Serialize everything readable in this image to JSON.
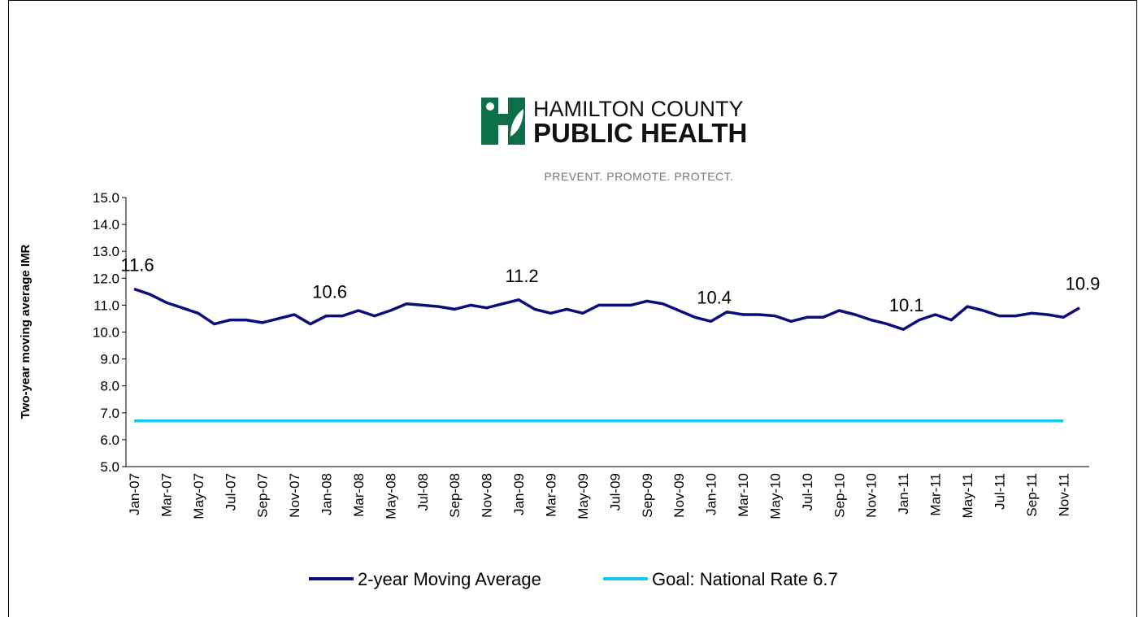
{
  "chart_data": {
    "type": "line",
    "annotations": [
      "HAMILTON COUNTY",
      "PUBLIC HEALTH",
      "PREVENT. PROMOTE. PROTECT."
    ],
    "ylabel": "Two-year moving average IMR",
    "categories": [
      "Jan-07",
      null,
      "Mar-07",
      null,
      "May-07",
      null,
      "Jul-07",
      null,
      "Sep-07",
      null,
      "Nov-07",
      null,
      "Jan-08",
      null,
      "Mar-08",
      null,
      "May-08",
      null,
      "Jul-08",
      null,
      "Sep-08",
      null,
      "Nov-08",
      null,
      "Jan-09",
      null,
      "Mar-09",
      null,
      "May-09",
      null,
      "Jul-09",
      null,
      "Sep-09",
      null,
      "Nov-09",
      null,
      "Jan-10",
      null,
      "Mar-10",
      null,
      "May-10",
      null,
      "Jul-10",
      null,
      "Sep-10",
      null,
      "Nov-10",
      null,
      "Jan-11",
      null,
      "Mar-11",
      null,
      "May-11",
      null,
      "Jul-11",
      null,
      "Sep-11",
      null,
      "Nov-11",
      null
    ],
    "series": [
      {
        "name": "2-year Moving Average",
        "color": "#0c0c7a",
        "values": [
          11.6,
          11.4,
          11.1,
          10.9,
          10.7,
          10.3,
          10.45,
          10.45,
          10.35,
          10.5,
          10.65,
          10.3,
          10.6,
          10.6,
          10.8,
          10.6,
          10.8,
          11.05,
          11.0,
          10.95,
          10.85,
          11.0,
          10.9,
          11.05,
          11.2,
          10.85,
          10.7,
          10.85,
          10.7,
          11.0,
          11.0,
          11.0,
          11.15,
          11.05,
          10.8,
          10.55,
          10.4,
          10.75,
          10.65,
          10.65,
          10.6,
          10.4,
          10.55,
          10.55,
          10.8,
          10.65,
          10.45,
          10.3,
          10.1,
          10.45,
          10.65,
          10.45,
          10.95,
          10.8,
          10.6,
          10.6,
          10.7,
          10.65,
          10.55,
          10.9
        ],
        "value_labels": [
          "11.6",
          null,
          null,
          null,
          null,
          null,
          null,
          null,
          null,
          null,
          null,
          null,
          "10.6",
          null,
          null,
          null,
          null,
          null,
          null,
          null,
          null,
          null,
          null,
          null,
          "11.2",
          null,
          null,
          null,
          null,
          null,
          null,
          null,
          null,
          null,
          null,
          null,
          "10.4",
          null,
          null,
          null,
          null,
          null,
          null,
          null,
          null,
          null,
          null,
          null,
          "10.1",
          null,
          null,
          null,
          null,
          null,
          null,
          null,
          null,
          null,
          null,
          "10.9"
        ]
      },
      {
        "name": "Goal: National Rate 6.7",
        "color": "#14c8f0",
        "values": [
          6.7,
          6.7,
          6.7,
          6.7,
          6.7,
          6.7,
          6.7,
          6.7,
          6.7,
          6.7,
          6.7,
          6.7,
          6.7,
          6.7,
          6.7,
          6.7,
          6.7,
          6.7,
          6.7,
          6.7,
          6.7,
          6.7,
          6.7,
          6.7,
          6.7,
          6.7,
          6.7,
          6.7,
          6.7,
          6.7,
          6.7,
          6.7,
          6.7,
          6.7,
          6.7,
          6.7,
          6.7,
          6.7,
          6.7,
          6.7,
          6.7,
          6.7,
          6.7,
          6.7,
          6.7,
          6.7,
          6.7,
          6.7,
          6.7,
          6.7,
          6.7,
          6.7,
          6.7,
          6.7,
          6.7,
          6.7,
          6.7,
          6.7,
          6.7,
          null
        ]
      }
    ],
    "ylim": [
      5,
      15
    ],
    "yticks": [
      {
        "value": 5,
        "label": "5.0"
      },
      {
        "value": 6,
        "label": "6.0"
      },
      {
        "value": 7,
        "label": "7.0"
      },
      {
        "value": 8,
        "label": "8.0"
      },
      {
        "value": 9,
        "label": "9.0"
      },
      {
        "value": 10,
        "label": "10.0"
      },
      {
        "value": 11,
        "label": "11.0"
      },
      {
        "value": 12,
        "label": "12.0"
      },
      {
        "value": 13,
        "label": "13.0"
      },
      {
        "value": 14,
        "label": "14.0"
      },
      {
        "value": 15,
        "label": "15.0"
      }
    ],
    "grid": false,
    "legend": "bottom"
  }
}
